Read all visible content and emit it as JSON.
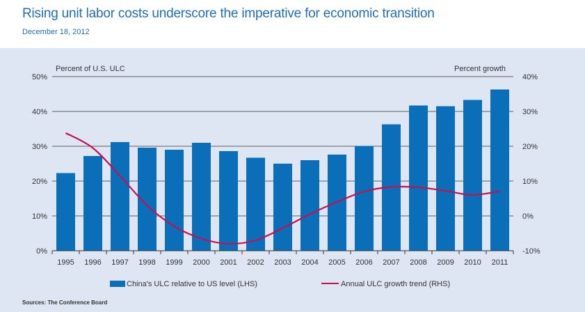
{
  "header": {
    "title": "Rising unit labor costs underscore the imperative for economic transition",
    "date": "December 18, 2012"
  },
  "footer": {
    "source": "Sources: The Conference Board"
  },
  "colors": {
    "bar": "#0a6fb8",
    "line": "#c3124f",
    "title": "#1f6db3",
    "panel": "#dde6f2"
  },
  "chart_data": {
    "type": "bar",
    "categories": [
      "1995",
      "1996",
      "1997",
      "1998",
      "1999",
      "2000",
      "2001",
      "2002",
      "2003",
      "2004",
      "2005",
      "2006",
      "2007",
      "2008",
      "2009",
      "2010",
      "2011"
    ],
    "series": [
      {
        "name": "China's ULC relative to US level (LHS)",
        "type": "bar",
        "axis": "left",
        "values": [
          22.3,
          27.2,
          31.2,
          29.6,
          29.0,
          31.0,
          28.6,
          26.7,
          25.0,
          26.0,
          27.6,
          30.1,
          36.3,
          41.7,
          41.5,
          43.3,
          46.3
        ]
      },
      {
        "name": "Annual ULC growth trend (RHS)",
        "type": "line",
        "axis": "right",
        "values": [
          23.8,
          19.5,
          11.5,
          3.0,
          -3.0,
          -6.5,
          -8.0,
          -7.0,
          -3.5,
          0.5,
          4.0,
          7.0,
          8.3,
          8.2,
          7.2,
          6.0,
          7.1
        ]
      }
    ],
    "left_axis": {
      "label": "Percent of U.S. ULC",
      "ylim": [
        0,
        50
      ],
      "ticks": [
        "0%",
        "10%",
        "20%",
        "30%",
        "40%",
        "50%"
      ]
    },
    "right_axis": {
      "label": "Percent growth",
      "ylim": [
        -10,
        40
      ],
      "ticks": [
        "-10%",
        "0%",
        "10%",
        "20%",
        "30%",
        "40%"
      ]
    },
    "grid": true,
    "legend": "bottom"
  }
}
